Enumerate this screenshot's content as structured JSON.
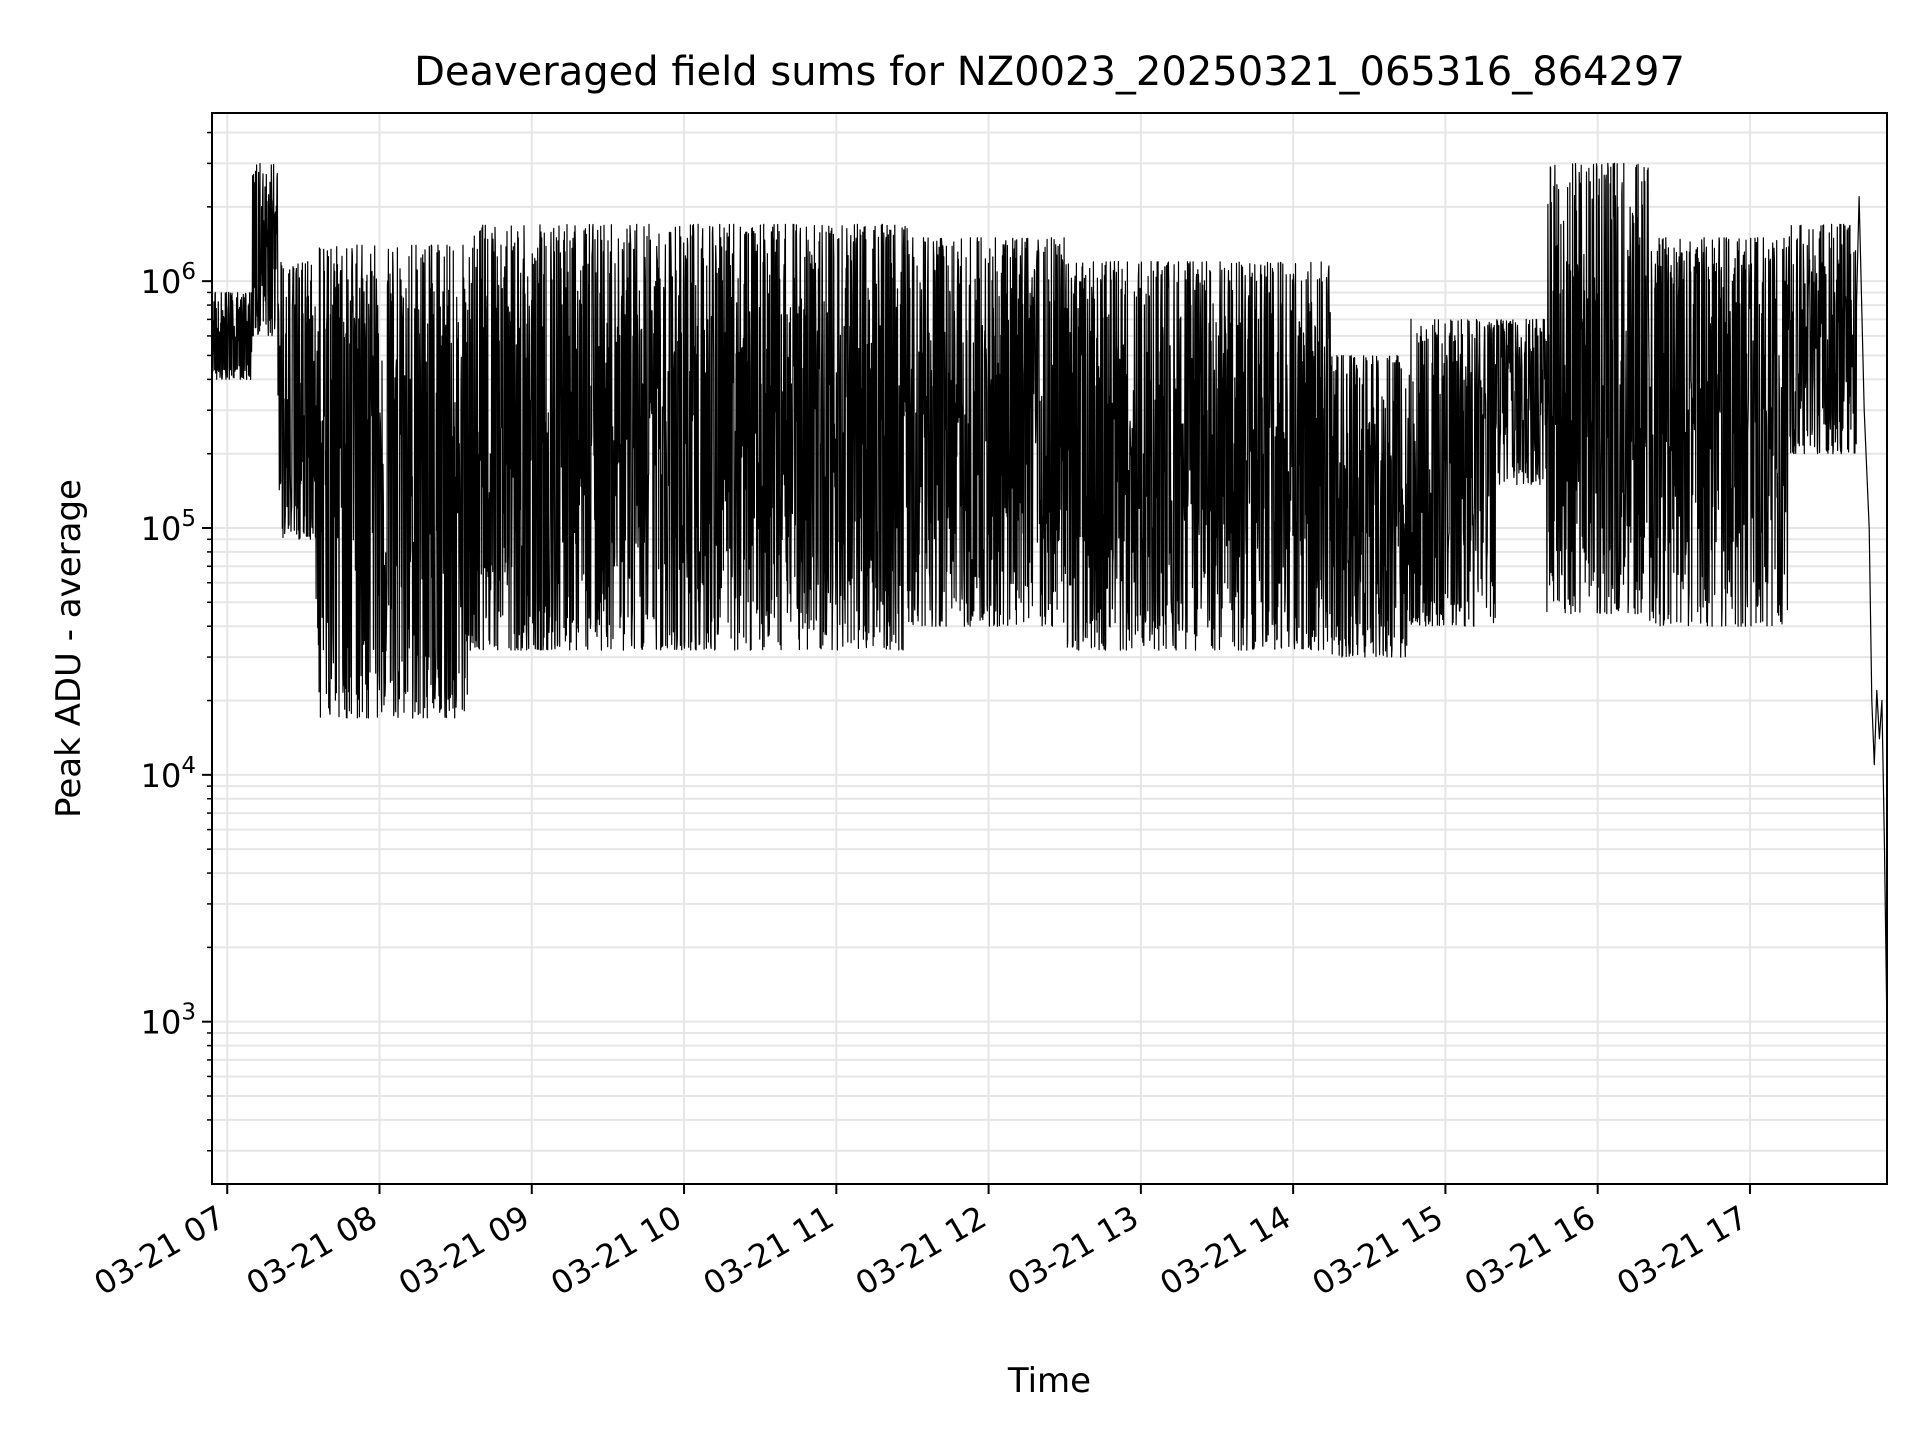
{
  "chart_data": {
    "type": "line",
    "title": "Deaveraged field sums for NZ0023_20250321_065316_864297",
    "xlabel": "Time",
    "ylabel": "Peak ADU - average",
    "yscale": "log",
    "ylim": [
      220,
      4800000
    ],
    "xlim": [
      "2025-03-21 06:54",
      "2025-03-21 17:54"
    ],
    "grid": true,
    "grid_color": "#e6e6e6",
    "line_color": "#000000",
    "x_ticks": [
      "03-21 07",
      "03-21 08",
      "03-21 09",
      "03-21 10",
      "03-21 11",
      "03-21 12",
      "03-21 13",
      "03-21 14",
      "03-21 15",
      "03-21 16",
      "03-21 17"
    ],
    "y_ticks": [
      {
        "value": 1000,
        "base": "10",
        "exp": "3"
      },
      {
        "value": 10000,
        "base": "10",
        "exp": "4"
      },
      {
        "value": 100000,
        "base": "10",
        "exp": "5"
      },
      {
        "value": 1000000,
        "base": "10",
        "exp": "6"
      }
    ],
    "segments": [
      {
        "start": "2025-03-21 06:54",
        "end": "2025-03-21 07:10",
        "low": 400000,
        "high": 900000
      },
      {
        "start": "2025-03-21 07:10",
        "end": "2025-03-21 07:20",
        "low": 600000,
        "high": 3000000
      },
      {
        "start": "2025-03-21 07:20",
        "end": "2025-03-21 07:35",
        "low": 90000,
        "high": 1200000
      },
      {
        "start": "2025-03-21 07:35",
        "end": "2025-03-21 08:35",
        "low": 17000,
        "high": 1400000
      },
      {
        "start": "2025-03-21 08:35",
        "end": "2025-03-21 11:30",
        "low": 32000,
        "high": 1700000
      },
      {
        "start": "2025-03-21 11:30",
        "end": "2025-03-21 12:30",
        "low": 40000,
        "high": 1500000
      },
      {
        "start": "2025-03-21 12:30",
        "end": "2025-03-21 14:15",
        "low": 32000,
        "high": 1200000
      },
      {
        "start": "2025-03-21 14:15",
        "end": "2025-03-21 14:45",
        "low": 30000,
        "high": 500000
      },
      {
        "start": "2025-03-21 14:45",
        "end": "2025-03-21 15:20",
        "low": 40000,
        "high": 700000
      },
      {
        "start": "2025-03-21 15:20",
        "end": "2025-03-21 15:40",
        "low": 150000,
        "high": 700000
      },
      {
        "start": "2025-03-21 15:40",
        "end": "2025-03-21 16:20",
        "low": 45000,
        "high": 3000000
      },
      {
        "start": "2025-03-21 16:20",
        "end": "2025-03-21 17:15",
        "low": 40000,
        "high": 1500000
      },
      {
        "start": "2025-03-21 17:15",
        "end": "2025-03-21 17:42",
        "low": 200000,
        "high": 1700000
      }
    ],
    "tail": [
      {
        "x": "2025-03-21 17:42",
        "y": 800000
      },
      {
        "x": "2025-03-21 17:43",
        "y": 2200000
      },
      {
        "x": "2025-03-21 17:45",
        "y": 300000
      },
      {
        "x": "2025-03-21 17:47",
        "y": 100000
      },
      {
        "x": "2025-03-21 17:48",
        "y": 20000
      },
      {
        "x": "2025-03-21 17:49",
        "y": 11000
      },
      {
        "x": "2025-03-21 17:50",
        "y": 22000
      },
      {
        "x": "2025-03-21 17:51",
        "y": 14000
      },
      {
        "x": "2025-03-21 17:52",
        "y": 20000
      },
      {
        "x": "2025-03-21 17:53",
        "y": 5000
      },
      {
        "x": "2025-03-21 17:54",
        "y": 900
      }
    ]
  }
}
